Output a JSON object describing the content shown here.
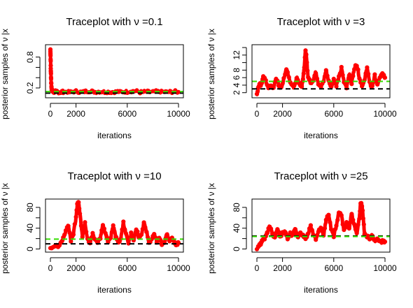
{
  "chart_data": [
    {
      "type": "line",
      "title": "Traceplot with ν =0.1",
      "xlabel": "iterations",
      "ylabel": "posterior samples of ν |x",
      "xlim": [
        0,
        10000
      ],
      "ylim": [
        0.05,
        1.0
      ],
      "xticks": [
        0,
        2000,
        6000,
        10000
      ],
      "yticks": [
        0.2,
        0.4,
        0.6,
        0.8
      ],
      "ytick_labels": [
        "0.2",
        "",
        "",
        "0.8"
      ],
      "true_value": 0.1,
      "posterior_mean": 0.13,
      "series": [
        {
          "color": "#ff0000",
          "x": [
            0,
            5,
            10,
            20,
            30,
            40,
            50,
            60,
            80,
            100,
            150,
            200,
            300,
            500,
            800,
            1000,
            1500,
            2000,
            2500,
            3000,
            3500,
            4000,
            4500,
            5000,
            5500,
            6000,
            6500,
            7000,
            7500,
            8000,
            8500,
            9000,
            9500,
            10000
          ],
          "values": [
            0.95,
            0.9,
            0.82,
            0.72,
            0.6,
            0.5,
            0.4,
            0.32,
            0.22,
            0.16,
            0.14,
            0.13,
            0.12,
            0.13,
            0.12,
            0.13,
            0.12,
            0.13,
            0.12,
            0.14,
            0.12,
            0.13,
            0.12,
            0.13,
            0.12,
            0.13,
            0.14,
            0.12,
            0.13,
            0.12,
            0.13,
            0.12,
            0.13,
            0.12
          ]
        }
      ]
    },
    {
      "type": "line",
      "title": "Traceplot with ν =3",
      "xlabel": "iterations",
      "ylabel": "posterior samples of ν |x",
      "xlim": [
        0,
        10000
      ],
      "ylim": [
        1.2,
        14.2
      ],
      "xticks": [
        0,
        2000,
        6000,
        10000
      ],
      "yticks": [
        2,
        4,
        6,
        8,
        10,
        12,
        14
      ],
      "ytick_labels": [
        "2",
        "4",
        "6",
        "8",
        "",
        "12",
        ""
      ],
      "true_value": 3,
      "posterior_mean": 5,
      "series": [
        {
          "color": "#ff0000",
          "x": [
            0,
            100,
            200,
            300,
            400,
            500,
            700,
            900,
            1100,
            1300,
            1500,
            1700,
            1900,
            2100,
            2300,
            2500,
            2700,
            2900,
            3100,
            3300,
            3500,
            3600,
            3700,
            3800,
            3900,
            4000,
            4200,
            4400,
            4600,
            4800,
            5000,
            5200,
            5400,
            5600,
            5800,
            6000,
            6200,
            6400,
            6600,
            6800,
            7000,
            7200,
            7400,
            7600,
            7800,
            8000,
            8200,
            8400,
            8600,
            8800,
            9000,
            9200,
            9400,
            9600,
            9800,
            10000
          ],
          "values": [
            1.5,
            3,
            4.5,
            3.8,
            5,
            6.5,
            5,
            3.5,
            4,
            3,
            6,
            4,
            3.2,
            5.5,
            8.5,
            6,
            4,
            3.5,
            6,
            4.5,
            3.5,
            6,
            9,
            13.5,
            10,
            6,
            4.5,
            5.5,
            7.5,
            4.5,
            3.5,
            5,
            8,
            5,
            3.5,
            5.5,
            4,
            6,
            8.5,
            5,
            3.5,
            7,
            4.5,
            8.5,
            9.5,
            6,
            4,
            5,
            9,
            4.5,
            3.5,
            6.5,
            4,
            6,
            7,
            6
          ]
        }
      ]
    },
    {
      "type": "line",
      "title": "Traceplot with ν =10",
      "xlabel": "iterations",
      "ylabel": "posterior samples of ν |x",
      "xlim": [
        0,
        10000
      ],
      "ylim": [
        -2,
        92
      ],
      "xticks": [
        0,
        2000,
        6000,
        10000
      ],
      "yticks": [
        0,
        20,
        40,
        60,
        80
      ],
      "ytick_labels": [
        "0",
        "",
        "40",
        "",
        "80"
      ],
      "true_value": 10,
      "posterior_mean": 19,
      "series": [
        {
          "color": "#ff0000",
          "x": [
            0,
            200,
            400,
            600,
            800,
            1000,
            1200,
            1400,
            1600,
            1800,
            2000,
            2100,
            2200,
            2300,
            2500,
            2700,
            2900,
            3100,
            3300,
            3500,
            3700,
            3900,
            4100,
            4300,
            4500,
            4700,
            4900,
            5100,
            5300,
            5500,
            5700,
            5900,
            6100,
            6300,
            6500,
            6700,
            6900,
            7100,
            7300,
            7500,
            7700,
            7900,
            8100,
            8300,
            8500,
            8700,
            8900,
            9100,
            9300,
            9500,
            9700,
            9900,
            10000
          ],
          "values": [
            2,
            5,
            8,
            6,
            10,
            20,
            35,
            45,
            15,
            30,
            60,
            85,
            90,
            70,
            25,
            50,
            20,
            12,
            28,
            18,
            12,
            22,
            45,
            30,
            15,
            20,
            45,
            25,
            12,
            20,
            50,
            30,
            12,
            30,
            18,
            40,
            22,
            25,
            50,
            35,
            12,
            20,
            28,
            15,
            20,
            10,
            12,
            30,
            15,
            20,
            12,
            8,
            12
          ]
        }
      ]
    },
    {
      "type": "line",
      "title": "Traceplot with ν =25",
      "xlabel": "iterations",
      "ylabel": "posterior samples of ν |x",
      "xlim": [
        0,
        10000
      ],
      "ylim": [
        -2,
        92
      ],
      "xticks": [
        0,
        2000,
        6000,
        10000
      ],
      "yticks": [
        0,
        20,
        40,
        60,
        80
      ],
      "ytick_labels": [
        "0",
        "",
        "40",
        "",
        "80"
      ],
      "true_value": 25,
      "posterior_mean": 24,
      "series": [
        {
          "color": "#ff0000",
          "x": [
            0,
            200,
            400,
            600,
            800,
            1000,
            1200,
            1400,
            1600,
            1800,
            2000,
            2200,
            2400,
            2600,
            2800,
            3000,
            3200,
            3400,
            3600,
            3800,
            4000,
            4200,
            4400,
            4600,
            4800,
            5000,
            5200,
            5400,
            5600,
            5800,
            6000,
            6200,
            6400,
            6600,
            6800,
            7000,
            7200,
            7400,
            7600,
            7800,
            8000,
            8100,
            8200,
            8300,
            8400,
            8600,
            8800,
            9000,
            9200,
            9400,
            9600,
            9800,
            10000
          ],
          "values": [
            2,
            8,
            14,
            20,
            30,
            45,
            30,
            20,
            40,
            25,
            30,
            35,
            20,
            30,
            25,
            40,
            22,
            30,
            25,
            20,
            30,
            45,
            30,
            20,
            35,
            40,
            25,
            55,
            68,
            40,
            25,
            45,
            70,
            65,
            35,
            50,
            38,
            70,
            45,
            28,
            60,
            90,
            85,
            60,
            30,
            25,
            20,
            28,
            15,
            22,
            12,
            15,
            14
          ]
        }
      ]
    }
  ]
}
